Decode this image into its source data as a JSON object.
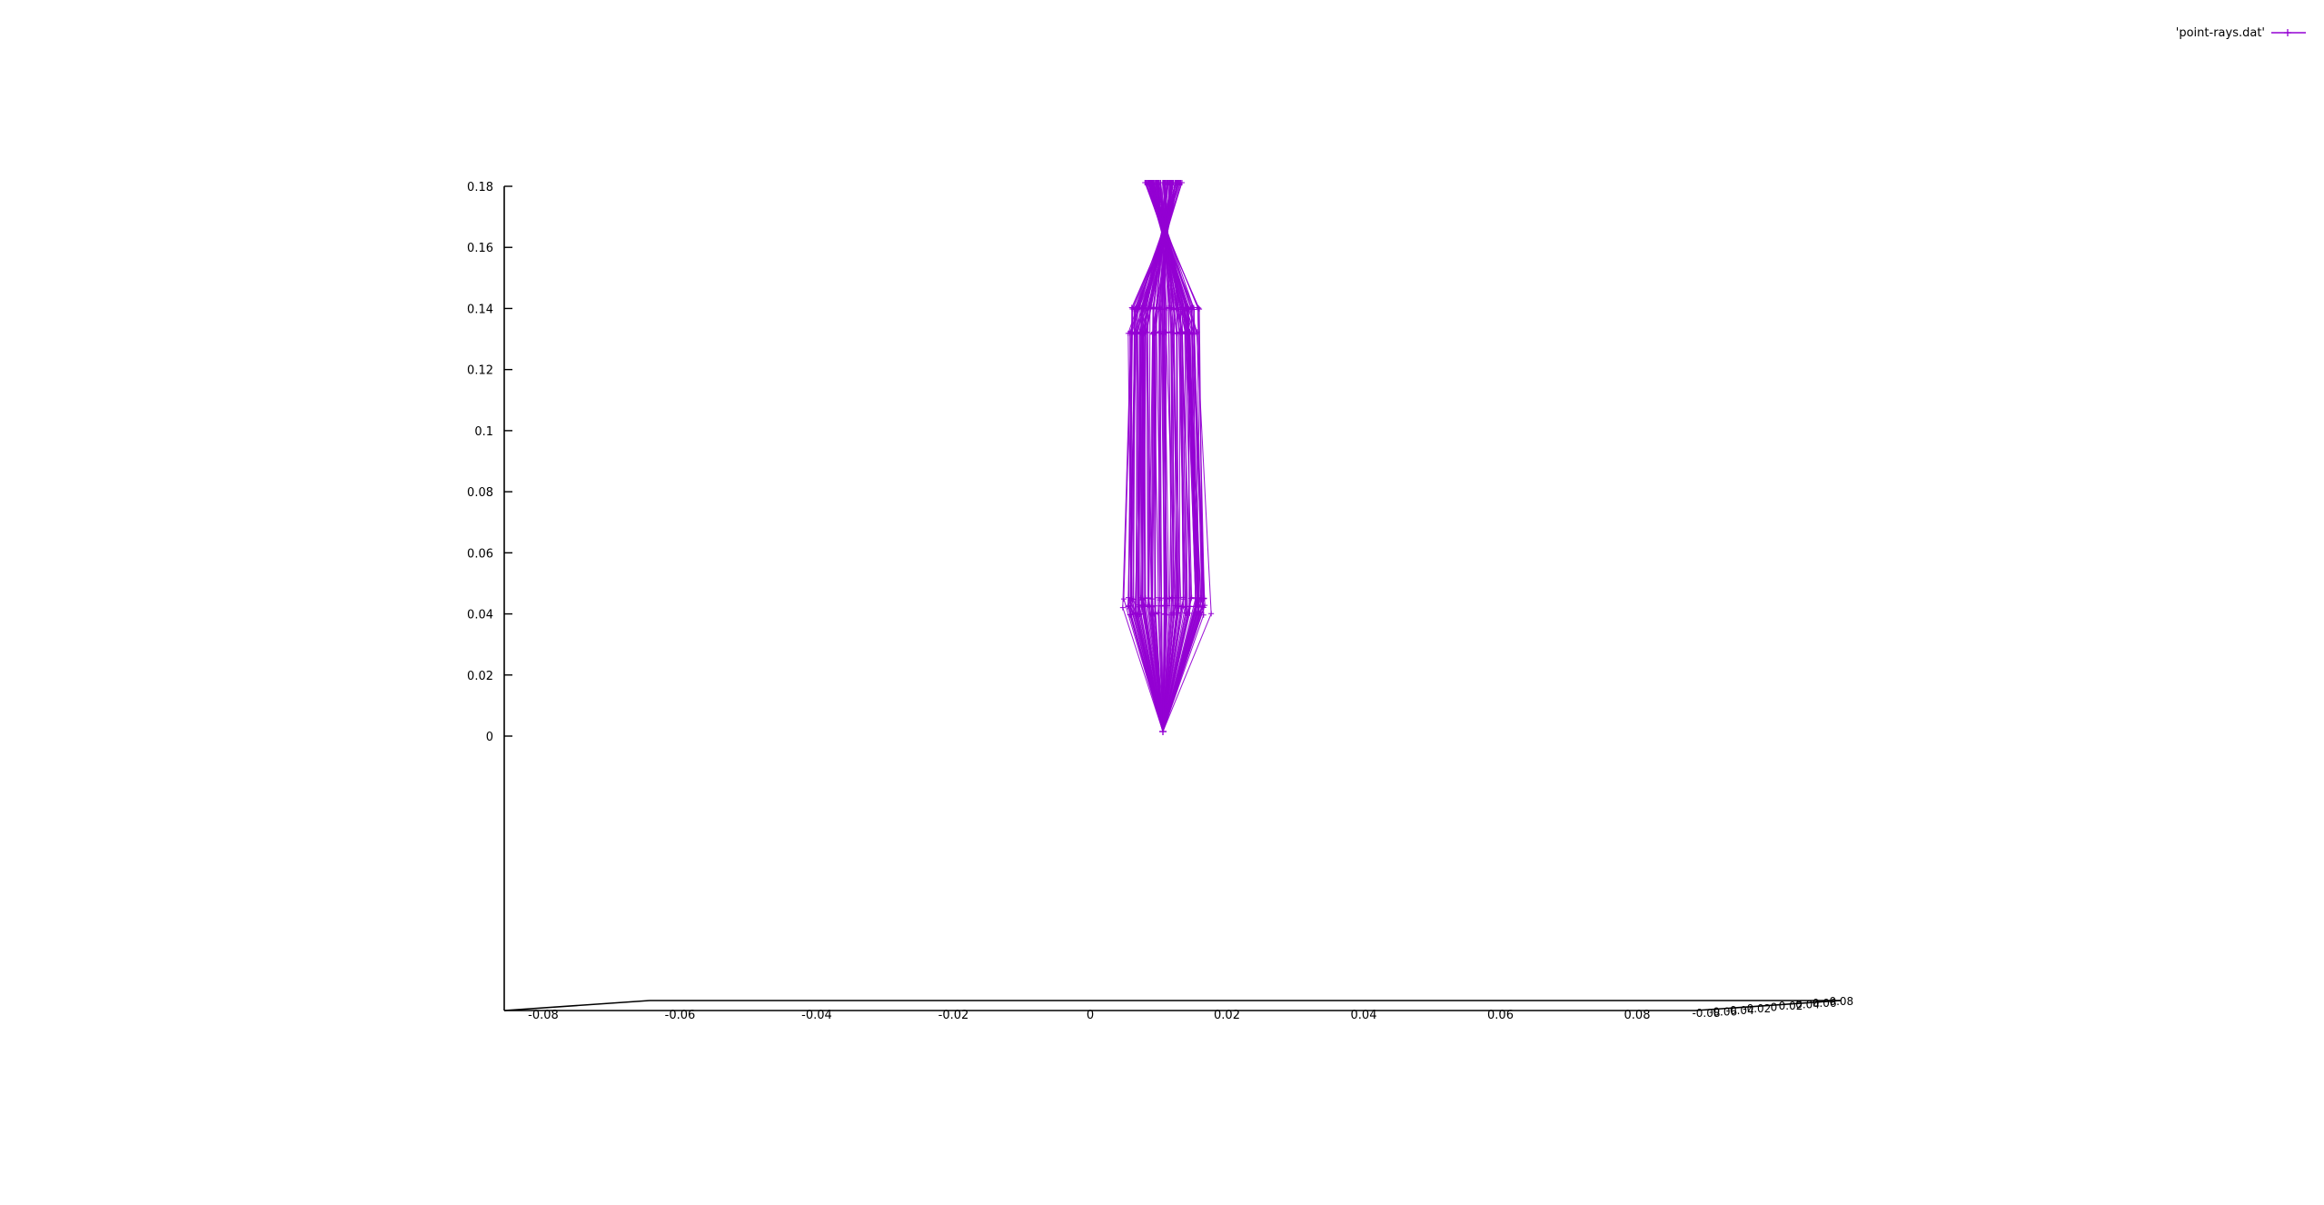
{
  "chart_data": {
    "type": "line",
    "title": "",
    "xlabel": "",
    "ylabel": "",
    "zlabel": "",
    "grid": false,
    "legend_position": "top-right",
    "z_range": [
      0,
      0.18
    ],
    "z_ticks": [
      "0.18",
      "0.16",
      "0.14",
      "0.12",
      "0.1",
      "0.08",
      "0.06",
      "0.04",
      "0.02",
      "0"
    ],
    "x_ticks": [
      "-0.08",
      "-0.06",
      "-0.04",
      "-0.02",
      "0",
      "0.02",
      "0.04",
      "0.06",
      "0.08"
    ],
    "y_ticks": [
      "-0.08",
      "-0.06",
      "-0.04",
      "-0.02",
      "0",
      "0.02",
      "0.04",
      "0.06",
      "0.08"
    ],
    "series": [
      {
        "name": "'point-rays.dat'",
        "color": "#9400d3",
        "source_point": {
          "x": 0,
          "y": 0,
          "z": 0
        },
        "ray_count": 120,
        "lens_heights": [
          0.04,
          0.0425,
          0.045
        ],
        "mid_heights": [
          0.132,
          0.14
        ],
        "focus_height": 0.165,
        "top_height": 0.18
      }
    ]
  },
  "legend": {
    "label": "'point-rays.dat'"
  }
}
